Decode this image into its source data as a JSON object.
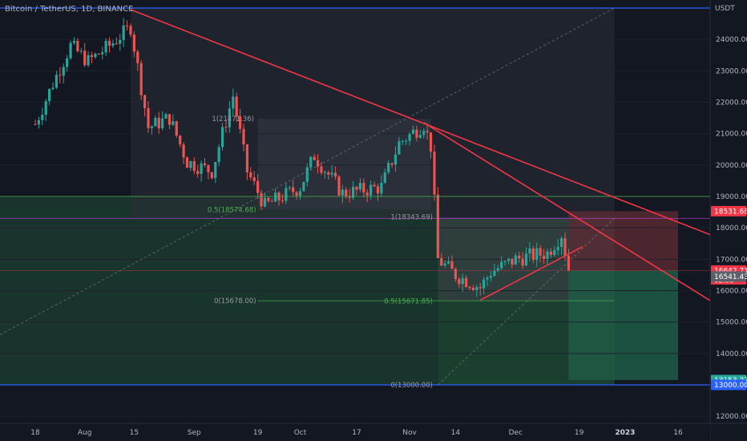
{
  "header": {
    "symbol_title": "Bitcoin / TetherUS, 1D, BINANCE",
    "currency": "USDT"
  },
  "colors": {
    "background": "#131722",
    "up": "#26a69a",
    "down": "#ef5350",
    "trendline": "#f23645",
    "blue_line": "#2962ff",
    "green_zone": "#1f4d34",
    "red_zone": "#5a2a33",
    "fib_green": "#4caf50",
    "axis_text": "#b2b5be"
  },
  "chart_data": {
    "type": "candlestick",
    "y_axis": {
      "range": [
        11800,
        25300
      ],
      "ticks": [
        12000,
        13000,
        14000,
        15000,
        16000,
        17000,
        18000,
        19000,
        20000,
        21000,
        22000,
        23000,
        24000
      ],
      "tick_labels": [
        "12000.00",
        "13000.00",
        "14000.00",
        "15000.00",
        "16000.00",
        "17000.00",
        "18000.00",
        "19000.00",
        "20000.00",
        "21000.00",
        "22000.00",
        "23000.00",
        "24000.00"
      ]
    },
    "x_axis": {
      "labels": [
        {
          "text": "18",
          "date": "2022-07-18"
        },
        {
          "text": "Aug",
          "date": "2022-08-01"
        },
        {
          "text": "15",
          "date": "2022-08-15"
        },
        {
          "text": "Sep",
          "date": "2022-09-01"
        },
        {
          "text": "19",
          "date": "2022-09-19"
        },
        {
          "text": "Oct",
          "date": "2022-10-01"
        },
        {
          "text": "17",
          "date": "2022-10-17"
        },
        {
          "text": "Nov",
          "date": "2022-11-01"
        },
        {
          "text": "14",
          "date": "2022-11-14"
        },
        {
          "text": "Dec",
          "date": "2022-12-01"
        },
        {
          "text": "19",
          "date": "2022-12-19"
        },
        {
          "text": "2023",
          "date": "2023-01-01"
        },
        {
          "text": "16",
          "date": "2023-01-16"
        }
      ]
    },
    "anchors": [
      {
        "date": "2022-07-18",
        "price": 21300
      },
      {
        "date": "2022-07-23",
        "price": 22600
      },
      {
        "date": "2022-07-28",
        "price": 23800
      },
      {
        "date": "2022-08-02",
        "price": 23300
      },
      {
        "date": "2022-08-08",
        "price": 23800
      },
      {
        "date": "2022-08-14",
        "price": 24400
      },
      {
        "date": "2022-08-19",
        "price": 21200
      },
      {
        "date": "2022-08-25",
        "price": 21500
      },
      {
        "date": "2022-08-30",
        "price": 20100
      },
      {
        "date": "2022-09-06",
        "price": 19800
      },
      {
        "date": "2022-09-12",
        "price": 22200
      },
      {
        "date": "2022-09-16",
        "price": 19800
      },
      {
        "date": "2022-09-21",
        "price": 18700
      },
      {
        "date": "2022-10-01",
        "price": 19300
      },
      {
        "date": "2022-10-05",
        "price": 20300
      },
      {
        "date": "2022-10-13",
        "price": 19100
      },
      {
        "date": "2022-10-24",
        "price": 19300
      },
      {
        "date": "2022-10-29",
        "price": 20700
      },
      {
        "date": "2022-11-05",
        "price": 21300
      },
      {
        "date": "2022-11-07",
        "price": 20600
      },
      {
        "date": "2022-11-09",
        "price": 17000
      },
      {
        "date": "2022-11-14",
        "price": 16500
      },
      {
        "date": "2022-11-21",
        "price": 16100
      },
      {
        "date": "2022-11-24",
        "price": 16600
      },
      {
        "date": "2022-12-01",
        "price": 17000
      },
      {
        "date": "2022-12-05",
        "price": 17100
      },
      {
        "date": "2022-12-10",
        "price": 17200
      },
      {
        "date": "2022-12-14",
        "price": 17800
      },
      {
        "date": "2022-12-16",
        "price": 16700
      }
    ],
    "lines": [
      {
        "name": "downtrend-1",
        "from": {
          "date": "2022-08-14",
          "price": 24950
        },
        "to": {
          "date": "2023-01-27",
          "price": 17700
        }
      },
      {
        "name": "downtrend-2",
        "from": {
          "date": "2022-11-05",
          "price": 21350
        },
        "to": {
          "date": "2023-01-27",
          "price": 15550
        }
      },
      {
        "name": "rising-support",
        "from": {
          "date": "2022-11-21",
          "price": 15700
        },
        "to": {
          "date": "2022-12-20",
          "price": 17400
        }
      }
    ],
    "horizontal_levels": [
      {
        "name": "blue-top",
        "price": 25000
      },
      {
        "name": "blue-bottom",
        "price": 13000
      },
      {
        "name": "pink-resistance",
        "price": 18300
      }
    ],
    "fib_labels": [
      {
        "text": "1(21471.36)",
        "price": 21471.36
      },
      {
        "text": "0.5(18574.68)",
        "price": 18574.68
      },
      {
        "text": "0(15678.00)",
        "price": 15678.0
      },
      {
        "text": "1(18343.69)",
        "price": 18343.69
      },
      {
        "text": "0.5(15671.85)",
        "price": 15671.85
      },
      {
        "text": "0(13000.00)",
        "price": 13000.0
      }
    ],
    "price_tags": [
      {
        "text": "18531.68",
        "price": 18531.68,
        "color": "#f23645"
      },
      {
        "text": "16642.71",
        "price": 16642.71,
        "color": "#f23645",
        "sub": "02:03"
      },
      {
        "text": "16541.43",
        "price": 16450,
        "color": "#5d606b"
      },
      {
        "text": "13153.27",
        "price": 13153.27,
        "color": "#26a69a"
      },
      {
        "text": "13000.00",
        "price": 13000.0,
        "color": "#2962ff"
      }
    ]
  }
}
